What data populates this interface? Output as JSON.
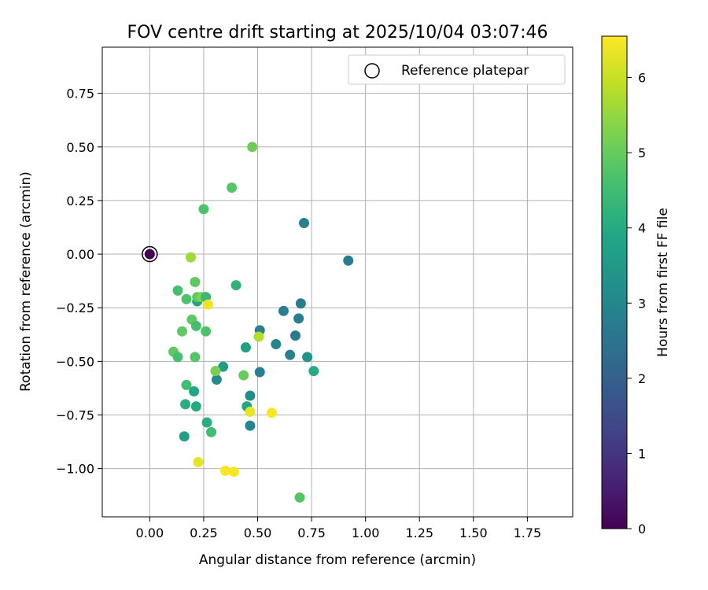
{
  "chart_data": {
    "type": "scatter",
    "title": "FOV centre drift starting at 2025/10/04 03:07:46",
    "xlabel": "Angular distance from reference (arcmin)",
    "ylabel": "Rotation from reference (arcmin)",
    "xlim": [
      -0.22,
      1.96
    ],
    "ylim": [
      -1.225,
      0.965
    ],
    "xticks": [
      0.0,
      0.25,
      0.5,
      0.75,
      1.0,
      1.25,
      1.5,
      1.75
    ],
    "xtick_labels": [
      "0.00",
      "0.25",
      "0.50",
      "0.75",
      "1.00",
      "1.25",
      "1.50",
      "1.75"
    ],
    "yticks": [
      -1.0,
      -0.75,
      -0.5,
      -0.25,
      0.0,
      0.25,
      0.5,
      0.75
    ],
    "ytick_labels": [
      "−1.00",
      "−0.75",
      "−0.50",
      "−0.25",
      "0.00",
      "0.25",
      "0.50",
      "0.75"
    ],
    "grid": true,
    "legend": {
      "placement": "top-right",
      "entries": [
        "Reference platepar"
      ]
    },
    "reference_point": {
      "x": 0.0,
      "y": 0.0,
      "hours": 0.0
    },
    "colorbar": {
      "label": "Hours from first FF file",
      "range": [
        0,
        6.55
      ],
      "ticks": [
        0,
        1,
        2,
        3,
        4,
        5,
        6
      ],
      "tick_labels": [
        "0",
        "1",
        "2",
        "3",
        "4",
        "5",
        "6"
      ],
      "colormap": "viridis"
    },
    "points": [
      {
        "x": 0.0,
        "y": 0.0,
        "hours": 0.0
      },
      {
        "x": 0.92,
        "y": -0.03,
        "hours": 2.7
      },
      {
        "x": 0.715,
        "y": 0.145,
        "hours": 2.8
      },
      {
        "x": 0.7,
        "y": -0.23,
        "hours": 2.75
      },
      {
        "x": 0.69,
        "y": -0.3,
        "hours": 2.75
      },
      {
        "x": 0.675,
        "y": -0.38,
        "hours": 2.7
      },
      {
        "x": 0.62,
        "y": -0.265,
        "hours": 2.8
      },
      {
        "x": 0.65,
        "y": -0.47,
        "hours": 2.8
      },
      {
        "x": 0.585,
        "y": -0.42,
        "hours": 3.0
      },
      {
        "x": 0.51,
        "y": -0.355,
        "hours": 2.8
      },
      {
        "x": 0.51,
        "y": -0.55,
        "hours": 2.8
      },
      {
        "x": 0.73,
        "y": -0.48,
        "hours": 3.4
      },
      {
        "x": 0.76,
        "y": -0.545,
        "hours": 4.0
      },
      {
        "x": 0.465,
        "y": -0.66,
        "hours": 3.2
      },
      {
        "x": 0.465,
        "y": -0.8,
        "hours": 3.0
      },
      {
        "x": 0.445,
        "y": -0.435,
        "hours": 3.7
      },
      {
        "x": 0.45,
        "y": -0.71,
        "hours": 3.9
      },
      {
        "x": 0.4,
        "y": -0.145,
        "hours": 4.2
      },
      {
        "x": 0.34,
        "y": -0.525,
        "hours": 3.6
      },
      {
        "x": 0.31,
        "y": -0.585,
        "hours": 3.1
      },
      {
        "x": 0.38,
        "y": 0.31,
        "hours": 4.8
      },
      {
        "x": 0.475,
        "y": 0.5,
        "hours": 5.1
      },
      {
        "x": 0.25,
        "y": 0.21,
        "hours": 4.7
      },
      {
        "x": 0.19,
        "y": -0.015,
        "hours": 5.6
      },
      {
        "x": 0.13,
        "y": -0.17,
        "hours": 4.6
      },
      {
        "x": 0.21,
        "y": -0.13,
        "hours": 4.9
      },
      {
        "x": 0.17,
        "y": -0.21,
        "hours": 4.7
      },
      {
        "x": 0.22,
        "y": -0.22,
        "hours": 3.8
      },
      {
        "x": 0.22,
        "y": -0.2,
        "hours": 4.9
      },
      {
        "x": 0.24,
        "y": -0.2,
        "hours": 5.3
      },
      {
        "x": 0.26,
        "y": -0.2,
        "hours": 4.4
      },
      {
        "x": 0.27,
        "y": -0.235,
        "hours": 6.4
      },
      {
        "x": 0.195,
        "y": -0.305,
        "hours": 4.9
      },
      {
        "x": 0.215,
        "y": -0.335,
        "hours": 4.6
      },
      {
        "x": 0.15,
        "y": -0.36,
        "hours": 4.9
      },
      {
        "x": 0.26,
        "y": -0.36,
        "hours": 4.7
      },
      {
        "x": 0.11,
        "y": -0.455,
        "hours": 4.9
      },
      {
        "x": 0.13,
        "y": -0.48,
        "hours": 4.6
      },
      {
        "x": 0.21,
        "y": -0.48,
        "hours": 4.8
      },
      {
        "x": 0.505,
        "y": -0.385,
        "hours": 5.8
      },
      {
        "x": 0.305,
        "y": -0.545,
        "hours": 5.2
      },
      {
        "x": 0.435,
        "y": -0.565,
        "hours": 5.0
      },
      {
        "x": 0.17,
        "y": -0.61,
        "hours": 4.5
      },
      {
        "x": 0.205,
        "y": -0.64,
        "hours": 3.9
      },
      {
        "x": 0.165,
        "y": -0.7,
        "hours": 4.1
      },
      {
        "x": 0.215,
        "y": -0.71,
        "hours": 4.0
      },
      {
        "x": 0.465,
        "y": -0.735,
        "hours": 6.3
      },
      {
        "x": 0.565,
        "y": -0.74,
        "hours": 6.5
      },
      {
        "x": 0.265,
        "y": -0.785,
        "hours": 4.1
      },
      {
        "x": 0.285,
        "y": -0.83,
        "hours": 4.5
      },
      {
        "x": 0.16,
        "y": -0.85,
        "hours": 3.7
      },
      {
        "x": 0.225,
        "y": -0.97,
        "hours": 6.3
      },
      {
        "x": 0.35,
        "y": -1.01,
        "hours": 6.5
      },
      {
        "x": 0.39,
        "y": -1.015,
        "hours": 6.5
      },
      {
        "x": 0.695,
        "y": -1.135,
        "hours": 4.8
      }
    ]
  }
}
